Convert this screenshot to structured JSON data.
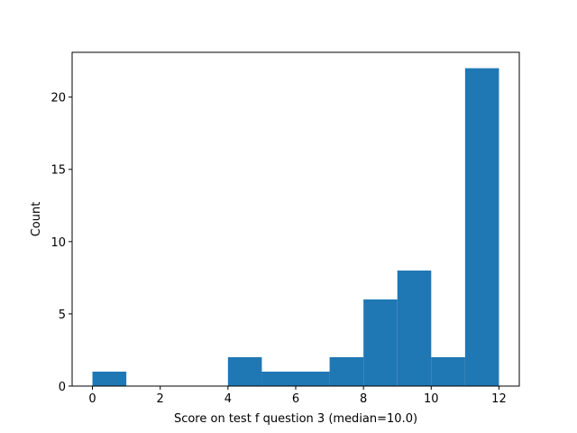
{
  "chart_data": {
    "type": "histogram",
    "xlabel": "Score on test f question 3 (median=10.0)",
    "ylabel": "Count",
    "bins": [
      0,
      1,
      2,
      3,
      4,
      5,
      6,
      7,
      8,
      9,
      10,
      11,
      12
    ],
    "values": [
      1,
      0,
      0,
      0,
      2,
      1,
      1,
      2,
      6,
      8,
      2,
      22
    ],
    "color": "#1f77b4",
    "xlim": [
      -0.6,
      12.6
    ],
    "ylim": [
      0,
      23.1
    ],
    "xticks": [
      0,
      2,
      4,
      6,
      8,
      10,
      12
    ],
    "yticks": [
      0,
      5,
      10,
      15,
      20
    ],
    "grid": false
  }
}
